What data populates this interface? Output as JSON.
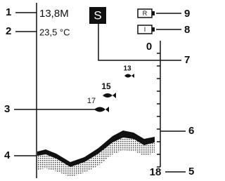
{
  "callouts": [
    "1",
    "2",
    "3",
    "4",
    "5",
    "6",
    "7",
    "8",
    "9"
  ],
  "readouts": {
    "depth": "13,8M",
    "temperature": "23,5 °C"
  },
  "mode": "S",
  "indicators": [
    "R",
    "I"
  ],
  "scale": {
    "top": "0",
    "bottom": "18"
  },
  "fish": [
    "13",
    "15",
    "17"
  ]
}
